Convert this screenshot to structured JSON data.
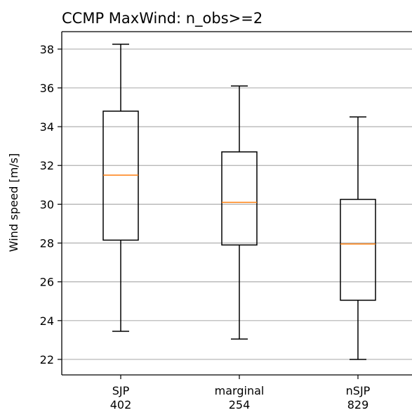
{
  "chart_data": {
    "type": "box",
    "title": "CCMP MaxWind: n_obs>=2",
    "xlabel": "",
    "ylabel": "Wind speed [m/s]",
    "ylim": [
      21.2,
      38.9
    ],
    "yticks": [
      22,
      24,
      26,
      28,
      30,
      32,
      34,
      36,
      38
    ],
    "grid": "y",
    "categories": [
      {
        "label": "SJP",
        "count": "402"
      },
      {
        "label": "marginal",
        "count": "254"
      },
      {
        "label": "nSJP",
        "count": "829"
      }
    ],
    "boxes": [
      {
        "whisker_low": 23.45,
        "q1": 28.15,
        "median": 31.5,
        "q3": 34.8,
        "whisker_high": 38.25
      },
      {
        "whisker_low": 23.05,
        "q1": 27.9,
        "median": 30.1,
        "q3": 32.7,
        "whisker_high": 36.1
      },
      {
        "whisker_low": 22.0,
        "q1": 25.05,
        "median": 27.95,
        "q3": 30.25,
        "whisker_high": 34.5
      }
    ],
    "colors": {
      "box": "#000000",
      "median": "#ff7f0e",
      "grid": "#b0b0b0"
    }
  }
}
